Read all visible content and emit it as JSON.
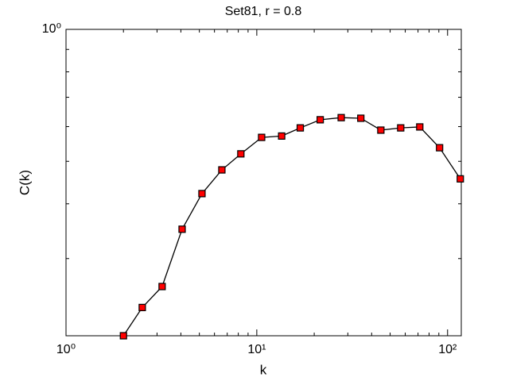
{
  "chart_data": {
    "type": "line",
    "title": "Set81, r = 0.8",
    "x_label": "k",
    "y_label": "C(k)",
    "x": [
      2,
      2.51,
      3.19,
      4.06,
      5.16,
      6.56,
      8.25,
      10.6,
      13.5,
      16.9,
      21.5,
      27.7,
      35.1,
      44.7,
      56.8,
      71.5,
      90.8,
      116.6
    ],
    "series": [
      {
        "color": "#ff0000",
        "values": [
          0.2,
          0.232,
          0.259,
          0.35,
          0.422,
          0.478,
          0.52,
          0.567,
          0.571,
          0.596,
          0.622,
          0.629,
          0.627,
          0.589,
          0.596,
          0.599,
          0.537,
          0.456
        ]
      }
    ],
    "xlim": [
      1,
      118
    ],
    "ylim": [
      0.2,
      1
    ],
    "log_x": true,
    "log_y": true,
    "xticks": [
      {
        "value": 1,
        "label": "10⁰"
      },
      {
        "value": 10,
        "label": "10¹"
      },
      {
        "value": 100,
        "label": "10²"
      }
    ],
    "xminor_ticks": [
      2,
      3,
      4,
      5,
      6,
      7,
      8,
      9,
      20,
      30,
      40,
      50,
      60,
      70,
      80,
      90
    ],
    "yticks": [
      {
        "value": 1,
        "label": "10⁰"
      }
    ],
    "yminor_ticks": [
      0.2,
      0.3,
      0.4,
      0.5,
      0.6,
      0.7,
      0.8,
      0.9
    ]
  }
}
